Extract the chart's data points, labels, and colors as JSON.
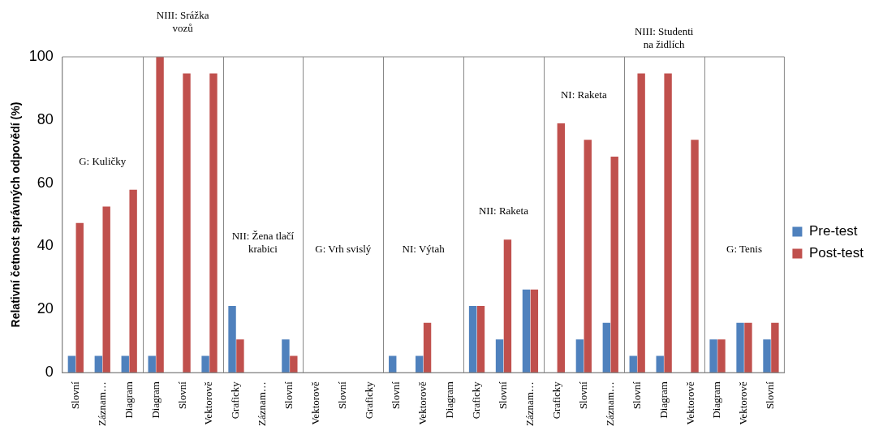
{
  "chart_data": {
    "type": "bar",
    "ylabel": "Relativní četnost správných odpovědí (%)",
    "categories": [
      "Slovní",
      "Záznam…",
      "Diagram",
      "Diagram",
      "Slovní",
      "Vektorově",
      "Graficky",
      "Záznam…",
      "Slovní",
      "Vektorově",
      "Slovní",
      "Graficky",
      "Slovní",
      "Vektorově",
      "Diagram",
      "Graficky",
      "Slovní",
      "Záznam…",
      "Graficky",
      "Slovní",
      "Záznam…",
      "Slovní",
      "Diagram",
      "Vektorově",
      "Diagram",
      "Vektorově",
      "Slovní"
    ],
    "series": [
      {
        "name": "Pre-test",
        "color": "#4f81bd",
        "values": [
          5.3,
          5.3,
          5.3,
          5.3,
          0,
          5.3,
          21.1,
          0,
          10.5,
          0,
          0,
          0,
          5.3,
          5.3,
          0,
          21.1,
          10.5,
          26.3,
          0,
          10.5,
          15.8,
          5.3,
          5.3,
          0,
          10.5,
          15.8,
          10.5
        ]
      },
      {
        "name": "Post-test",
        "color": "#c0504d",
        "values": [
          47.4,
          52.6,
          57.9,
          100,
          94.7,
          94.7,
          10.5,
          0,
          5.3,
          0,
          0,
          0,
          0,
          15.8,
          0,
          21.1,
          42.1,
          26.3,
          78.9,
          73.7,
          68.4,
          94.7,
          94.7,
          73.7,
          10.5,
          15.8,
          15.8
        ]
      }
    ],
    "ylim": [
      0,
      100
    ],
    "yticks": [
      0,
      20,
      40,
      60,
      80,
      100
    ],
    "grid": false,
    "legend": "right",
    "annotations": [
      "G: Kuličky",
      "NIII: Srážka vozů",
      "NII: Žena tlačí krabici",
      "G: Vrh svislý",
      "NI: Výtah",
      "NII: Raketa",
      "NI: Raketa",
      "NIII: Studenti na židlích",
      "G: Tenis"
    ]
  }
}
